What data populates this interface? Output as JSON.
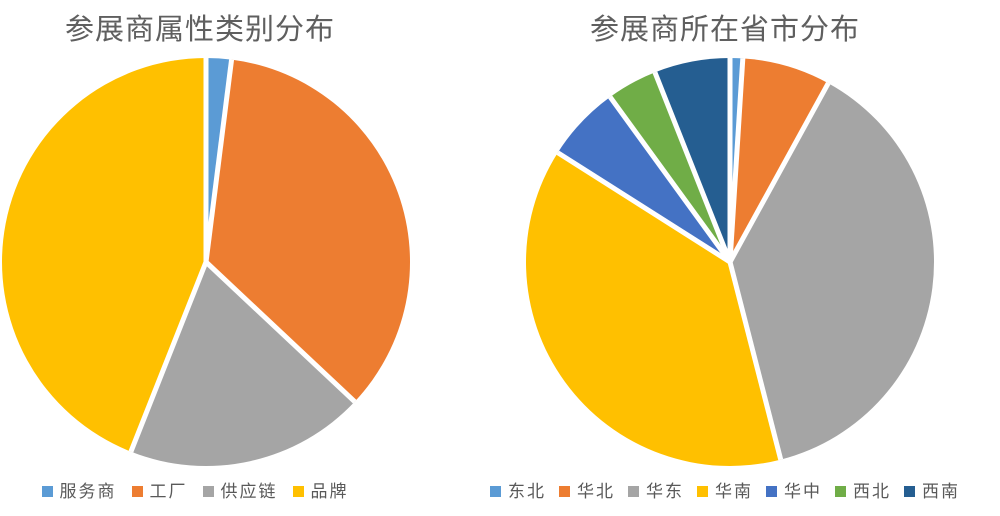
{
  "page": {
    "background": "#ffffff",
    "title_color": "#5f5f5f",
    "legend_text_color": "#595959"
  },
  "chart_data": [
    {
      "type": "pie",
      "title": "参展商属性类别分布",
      "categories": [
        "服务商",
        "工厂",
        "供应链",
        "品牌"
      ],
      "values": [
        2,
        35,
        19,
        44
      ],
      "colors": [
        "#5B9BD5",
        "#ED7D31",
        "#A5A5A5",
        "#FFC000"
      ],
      "legend_position": "bottom",
      "start_angle_deg": 0,
      "direction": "clockwise",
      "slice_border_color": "#ffffff"
    },
    {
      "type": "pie",
      "title": "参展商所在省市分布",
      "categories": [
        "东北",
        "华北",
        "华东",
        "华南",
        "华中",
        "西北",
        "西南"
      ],
      "values": [
        1,
        7,
        38,
        38,
        6,
        4,
        6
      ],
      "colors": [
        "#5B9BD5",
        "#ED7D31",
        "#A5A5A5",
        "#FFC000",
        "#4472C4",
        "#70AD47",
        "#255E91"
      ],
      "legend_position": "bottom",
      "start_angle_deg": 0,
      "direction": "clockwise",
      "slice_border_color": "#ffffff"
    }
  ]
}
